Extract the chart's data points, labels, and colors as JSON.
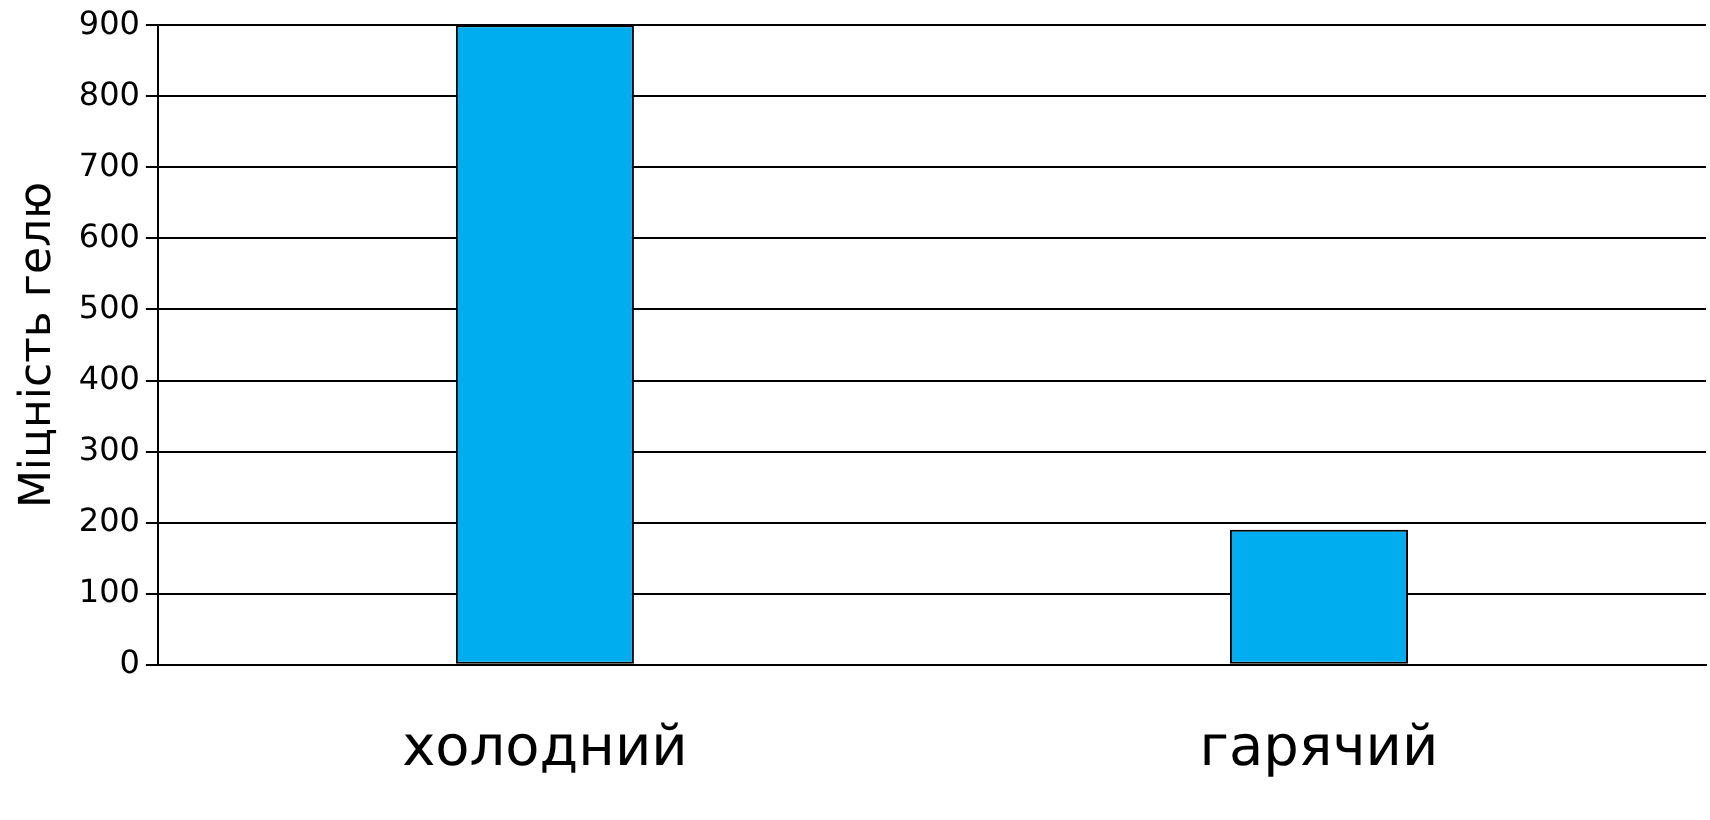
{
  "chart_data": {
    "type": "bar",
    "ylabel": "Міцність гелю",
    "categories": [
      "холодний",
      "гарячий"
    ],
    "values": [
      900,
      190
    ],
    "color": "#00aeef",
    "ylim": [
      0,
      900
    ],
    "yticks": [
      0,
      100,
      200,
      300,
      400,
      500,
      600,
      700,
      800,
      900
    ],
    "grid": "y",
    "legend": false
  }
}
